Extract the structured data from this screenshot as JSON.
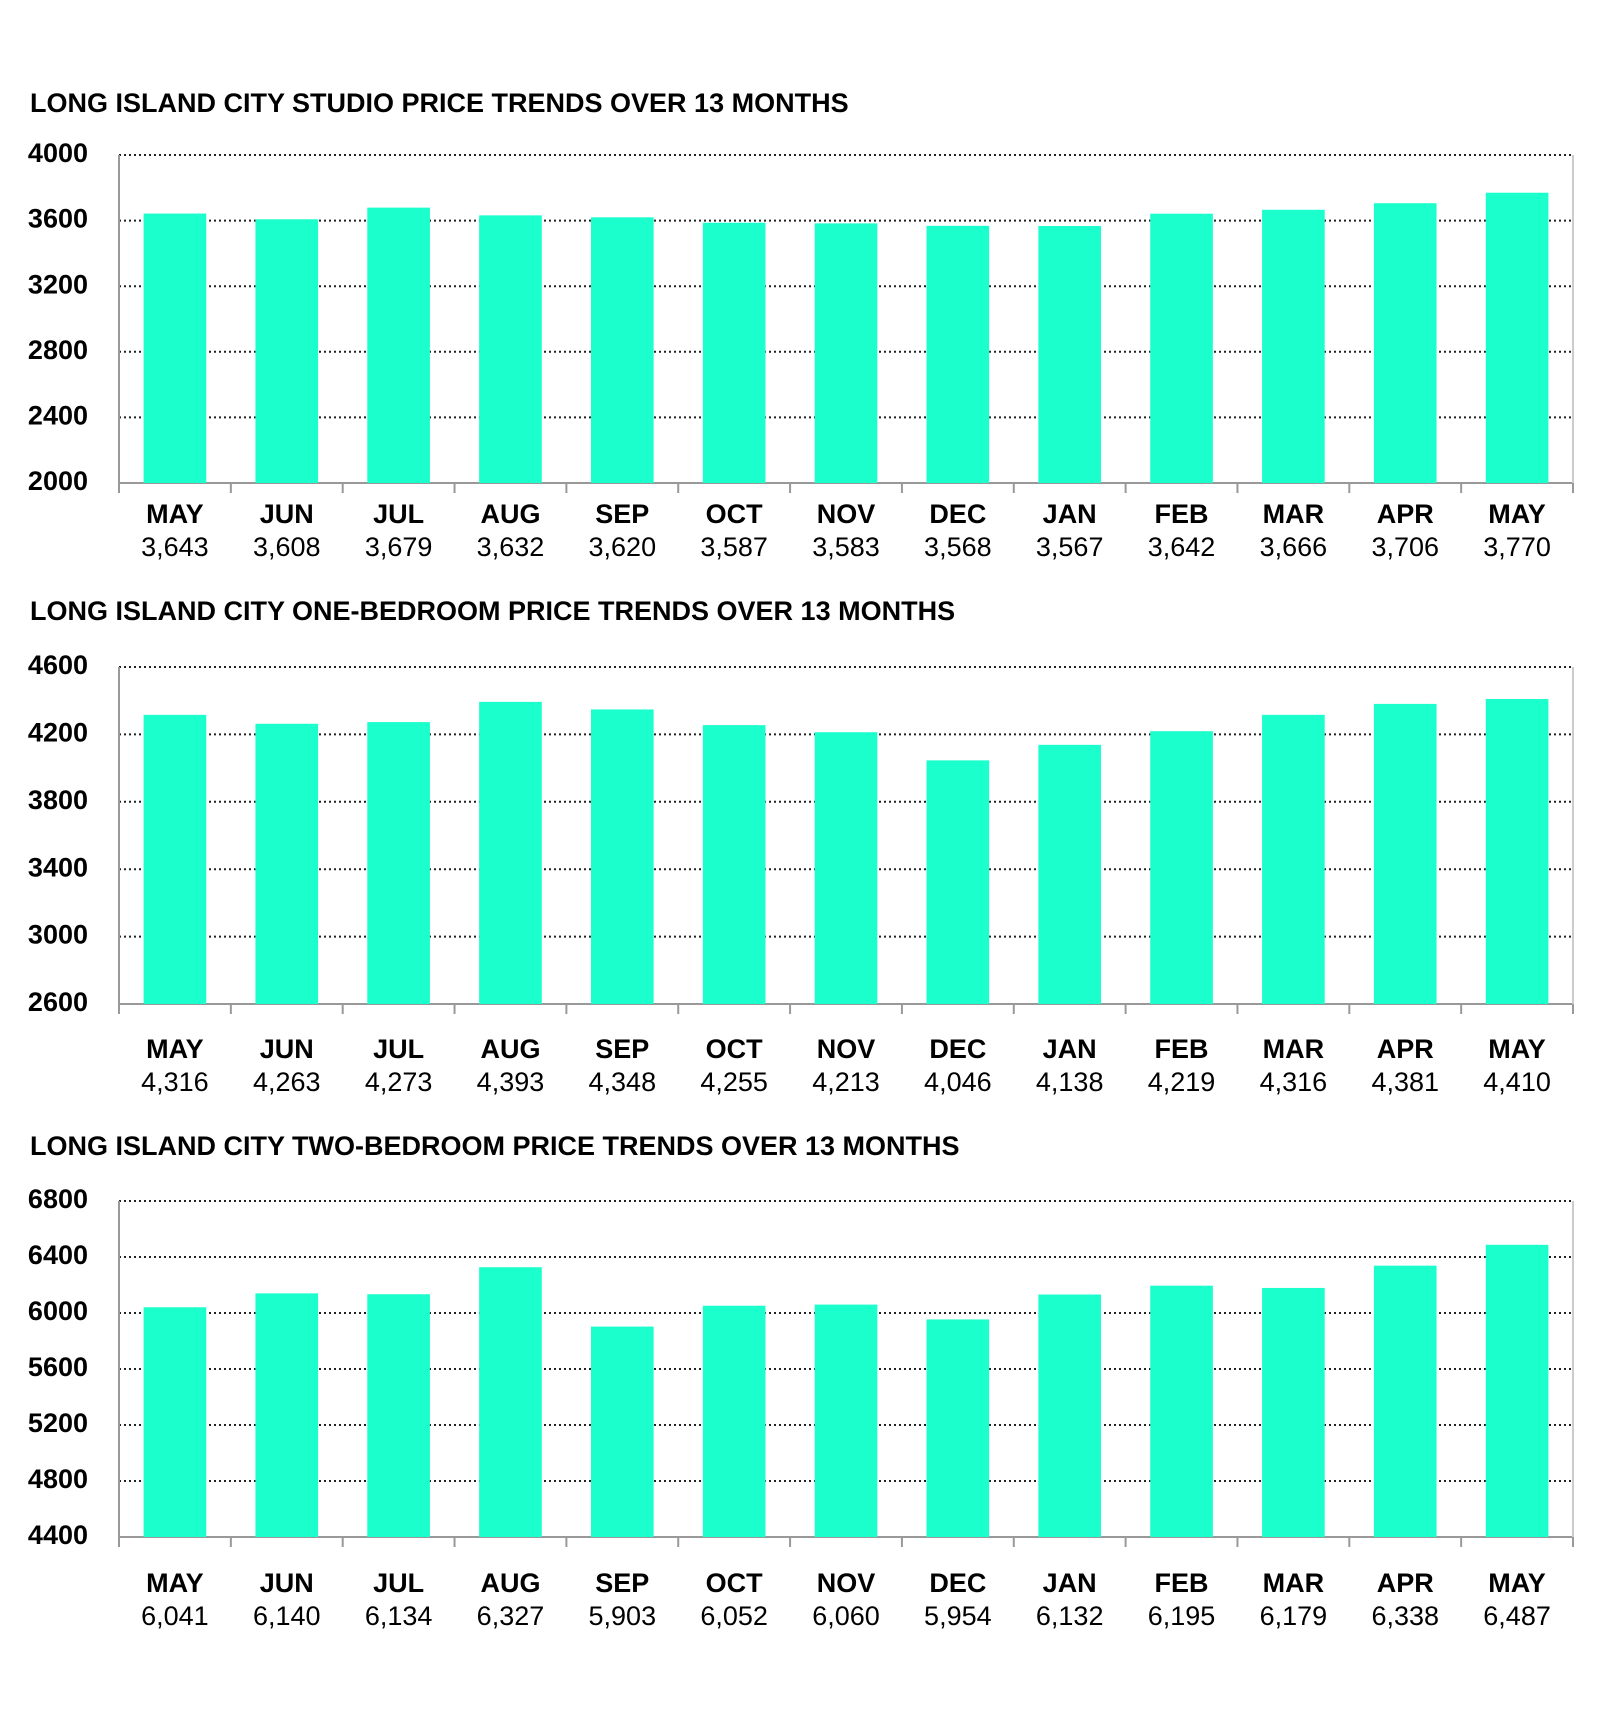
{
  "chart_data": [
    {
      "type": "bar",
      "title": "LONG ISLAND CITY STUDIO PRICE TRENDS OVER 13 MONTHS",
      "categories": [
        "MAY",
        "JUN",
        "JUL",
        "AUG",
        "SEP",
        "OCT",
        "NOV",
        "DEC",
        "JAN",
        "FEB",
        "MAR",
        "APR",
        "MAY"
      ],
      "values": [
        3643,
        3608,
        3679,
        3632,
        3620,
        3587,
        3583,
        3568,
        3567,
        3642,
        3666,
        3706,
        3770
      ],
      "value_labels": [
        "3,643",
        "3,608",
        "3,679",
        "3,632",
        "3,620",
        "3,587",
        "3,583",
        "3,568",
        "3,567",
        "3,642",
        "3,666",
        "3,706",
        "3,770"
      ],
      "color": "#1affcc",
      "ylim": [
        2000,
        4000
      ],
      "yticks": [
        2000,
        2400,
        2800,
        3200,
        3600,
        4000
      ],
      "grid": true
    },
    {
      "type": "bar",
      "title": "LONG ISLAND CITY ONE-BEDROOM PRICE TRENDS OVER 13 MONTHS",
      "categories": [
        "MAY",
        "JUN",
        "JUL",
        "AUG",
        "SEP",
        "OCT",
        "NOV",
        "DEC",
        "JAN",
        "FEB",
        "MAR",
        "APR",
        "MAY"
      ],
      "values": [
        4316,
        4263,
        4273,
        4393,
        4348,
        4255,
        4213,
        4046,
        4138,
        4219,
        4316,
        4381,
        4410
      ],
      "value_labels": [
        "4,316",
        "4,263",
        "4,273",
        "4,393",
        "4,348",
        "4,255",
        "4,213",
        "4,046",
        "4,138",
        "4,219",
        "4,316",
        "4,381",
        "4,410"
      ],
      "color": "#1affcc",
      "ylim": [
        2600,
        4600
      ],
      "yticks": [
        2600,
        3000,
        3400,
        3800,
        4200,
        4600
      ],
      "grid": true
    },
    {
      "type": "bar",
      "title": "LONG ISLAND CITY TWO-BEDROOM PRICE TRENDS OVER 13 MONTHS",
      "categories": [
        "MAY",
        "JUN",
        "JUL",
        "AUG",
        "SEP",
        "OCT",
        "NOV",
        "DEC",
        "JAN",
        "FEB",
        "MAR",
        "APR",
        "MAY"
      ],
      "values": [
        6041,
        6140,
        6134,
        6327,
        5903,
        6052,
        6060,
        5954,
        6132,
        6195,
        6179,
        6338,
        6487
      ],
      "value_labels": [
        "6,041",
        "6,140",
        "6,134",
        "6,327",
        "5,903",
        "6,052",
        "6,060",
        "5,954",
        "6,132",
        "6,195",
        "6,179",
        "6,338",
        "6,487"
      ],
      "color": "#1affcc",
      "ylim": [
        4400,
        6800
      ],
      "yticks": [
        4400,
        4800,
        5200,
        5600,
        6000,
        6400,
        6800
      ],
      "grid": true
    }
  ]
}
